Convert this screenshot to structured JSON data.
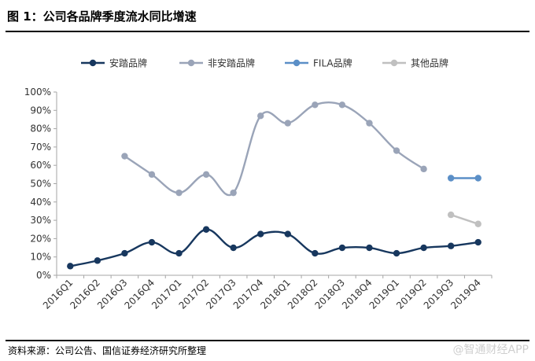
{
  "figure": {
    "title": "图 1：公司各品牌季度流水同比增速",
    "source": "资料来源：公司公告、国信证券经济研究所整理",
    "watermark": "@智通财经APP"
  },
  "chart_data": {
    "type": "line",
    "categories": [
      "2016Q1",
      "2016Q2",
      "2016Q3",
      "2016Q4",
      "2017Q1",
      "2017Q2",
      "2017Q3",
      "2017Q4",
      "2018Q1",
      "2018Q2",
      "2018Q3",
      "2018Q4",
      "2019Q1",
      "2019Q2",
      "2019Q3",
      "2019Q4"
    ],
    "series": [
      {
        "name": "安踏品牌",
        "color": "#17375e",
        "values": [
          0.05,
          0.08,
          0.12,
          0.18,
          0.12,
          0.25,
          0.15,
          0.225,
          0.225,
          0.12,
          0.15,
          0.15,
          0.12,
          0.15,
          0.16,
          0.18
        ]
      },
      {
        "name": "非安踏品牌",
        "color": "#9aa4b8",
        "values": [
          null,
          null,
          0.65,
          0.55,
          0.45,
          0.55,
          0.45,
          0.87,
          0.83,
          0.93,
          0.93,
          0.83,
          0.68,
          0.58,
          null,
          null
        ]
      },
      {
        "name": "FILA品牌",
        "color": "#5b8fc7",
        "values": [
          null,
          null,
          null,
          null,
          null,
          null,
          null,
          null,
          null,
          null,
          null,
          null,
          null,
          null,
          0.53,
          0.53
        ]
      },
      {
        "name": "其他品牌",
        "color": "#c0c0c0",
        "values": [
          null,
          null,
          null,
          null,
          null,
          null,
          null,
          null,
          null,
          null,
          null,
          null,
          null,
          null,
          0.33,
          0.28
        ]
      }
    ],
    "y_ticks": [
      "0%",
      "10%",
      "20%",
      "30%",
      "40%",
      "50%",
      "60%",
      "70%",
      "80%",
      "90%",
      "100%"
    ],
    "ylim": [
      0,
      1
    ],
    "xlabel": "",
    "ylabel": "",
    "grid": false,
    "legend_position": "top"
  }
}
